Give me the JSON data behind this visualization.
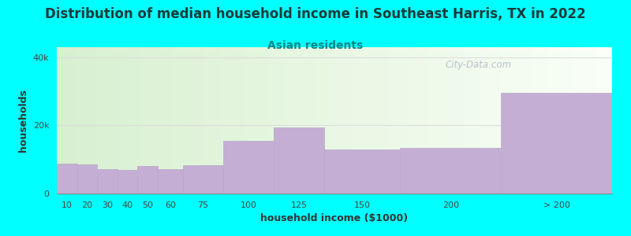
{
  "title": "Distribution of median household income in Southeast Harris, TX in 2022",
  "subtitle": "Asian residents",
  "xlabel": "household income ($1000)",
  "ylabel": "households",
  "background_color": "#00FFFF",
  "bar_color": "#c4aed4",
  "bar_edge_color": "#b8a8cc",
  "categories": [
    "10",
    "20",
    "30",
    "40",
    "50",
    "60",
    "75",
    "100",
    "125",
    "150",
    "200",
    "> 200"
  ],
  "values": [
    8800,
    8600,
    7200,
    7000,
    8000,
    7200,
    8400,
    15500,
    19500,
    13000,
    13500,
    29500
  ],
  "ylim": [
    0,
    43000
  ],
  "yticks": [
    0,
    20000,
    40000
  ],
  "ytick_labels": [
    "0",
    "20k",
    "40k"
  ],
  "title_fontsize": 12,
  "subtitle_fontsize": 10,
  "axis_label_fontsize": 9,
  "tick_fontsize": 8,
  "watermark_text": "City-Data.com",
  "watermark_color": "#b0b8c8",
  "plot_gradient_left": "#d8f0d0",
  "plot_gradient_right": "#f8fff8",
  "bin_edges": [
    5,
    15,
    25,
    35,
    45,
    55,
    67.5,
    87.5,
    112.5,
    137.5,
    175,
    225,
    280
  ]
}
